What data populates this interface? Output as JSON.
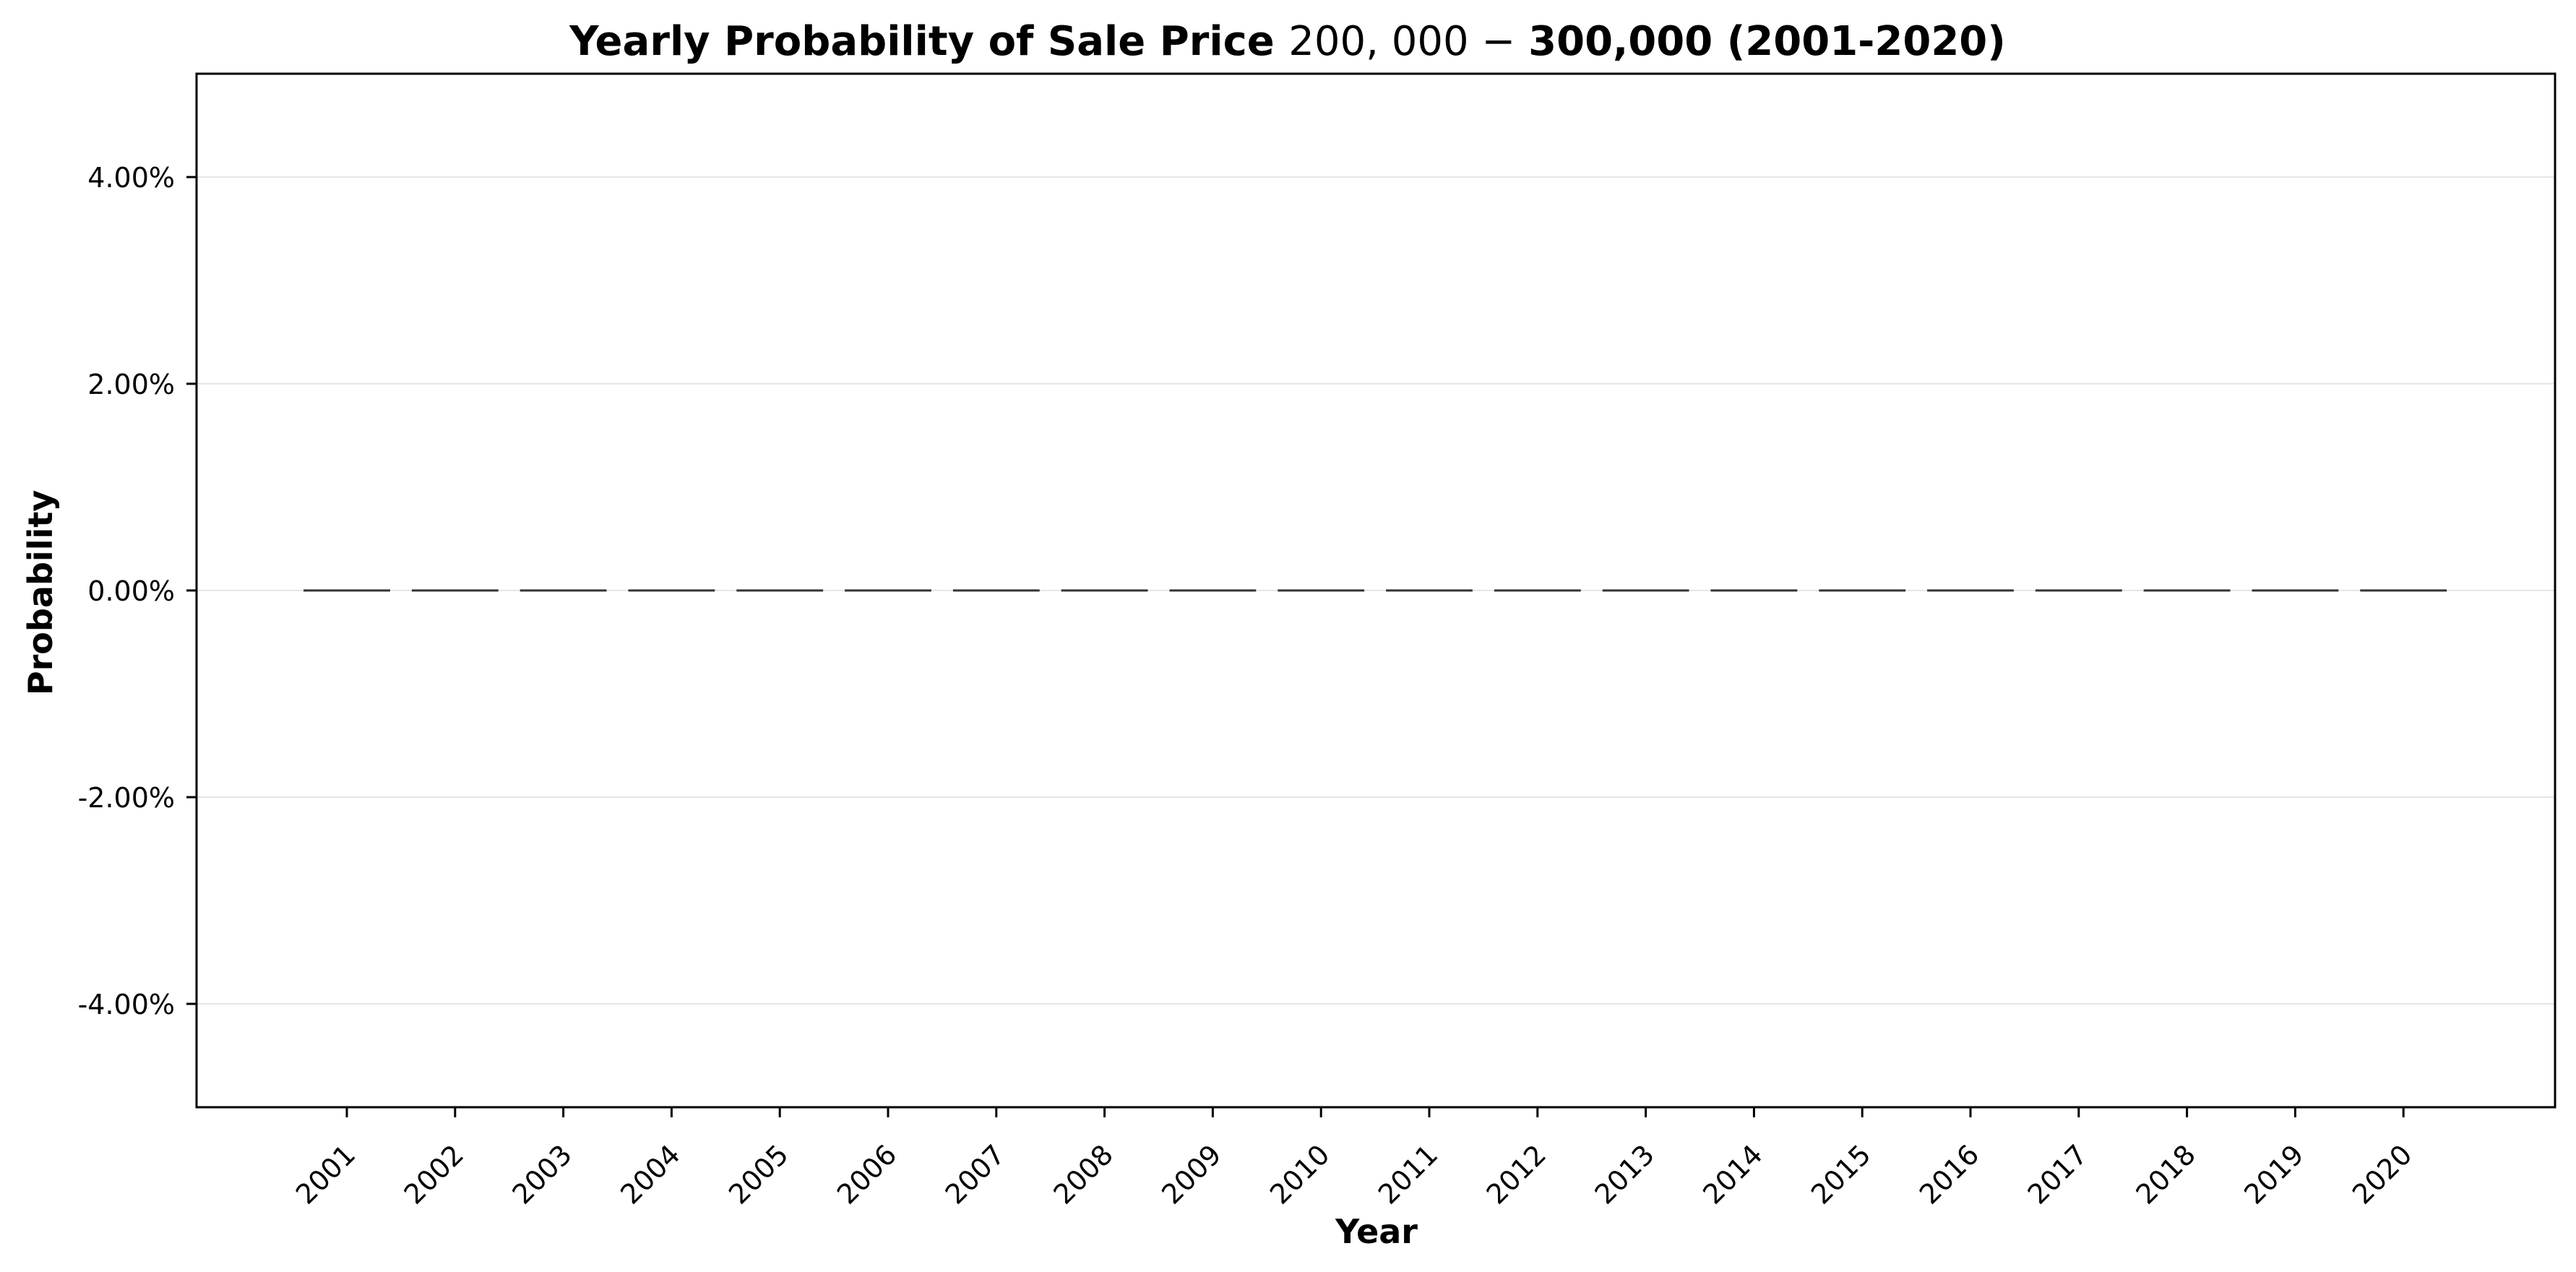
{
  "chart_data": {
    "type": "bar",
    "title": {
      "prefix": "Yearly Probability of Sale Price ",
      "math": "200, 000 − ",
      "suffix": "300,000 (2001-2020)"
    },
    "xlabel": "Year",
    "ylabel": "Probability",
    "categories": [
      "2001",
      "2002",
      "2003",
      "2004",
      "2005",
      "2006",
      "2007",
      "2008",
      "2009",
      "2010",
      "2011",
      "2012",
      "2013",
      "2014",
      "2015",
      "2016",
      "2017",
      "2018",
      "2019",
      "2020"
    ],
    "values": [
      0,
      0,
      0,
      0,
      0,
      0,
      0,
      0,
      0,
      0,
      0,
      0,
      0,
      0,
      0,
      0,
      0,
      0,
      0,
      0
    ],
    "ylim": [
      -0.05,
      0.05
    ],
    "yticks": [
      -0.04,
      -0.02,
      0.0,
      0.02,
      0.04
    ],
    "ytick_labels": [
      "-4.00%",
      "-2.00%",
      "0.00%",
      "2.00%",
      "4.00%"
    ],
    "grid": "horizontal",
    "colors": {
      "bar_edge": "#333333",
      "grid": "#e6e6e6",
      "frame": "#000000"
    }
  }
}
